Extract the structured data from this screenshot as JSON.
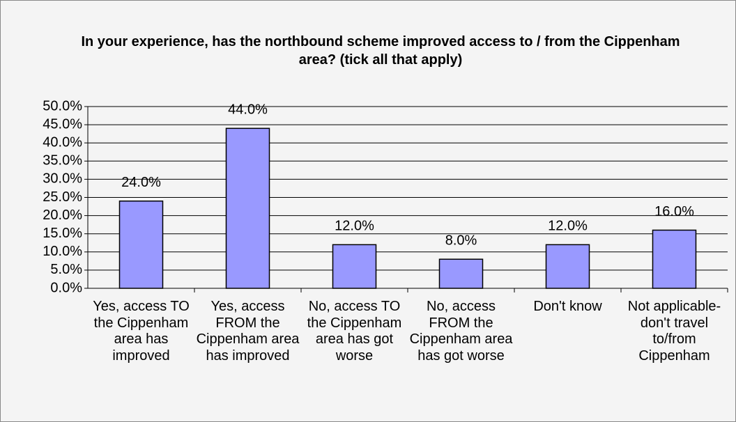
{
  "chart_data": {
    "type": "bar",
    "title": "In your experience, has the northbound scheme improved access to / from the Cippenham area? (tick all that apply)",
    "categories": [
      "Yes, access TO the Cippenham area has improved",
      "Yes, access FROM the Cippenham area has improved",
      "No, access TO the Cippenham area has got worse",
      "No, access FROM the Cippenham area has got worse",
      "Don't know",
      "Not applicable- don't travel to/from Cippenham"
    ],
    "values": [
      24,
      44,
      12,
      8,
      12,
      16
    ],
    "value_labels": [
      "24.0%",
      "44.0%",
      "12.0%",
      "8.0%",
      "12.0%",
      "16.0%"
    ],
    "color": "#9999ff",
    "ylim": [
      0,
      50
    ],
    "yticks": [
      {
        "value": 0,
        "label": "0.0%"
      },
      {
        "value": 5,
        "label": "5.0%"
      },
      {
        "value": 10,
        "label": "10.0%"
      },
      {
        "value": 15,
        "label": "15.0%"
      },
      {
        "value": 20,
        "label": "20.0%"
      },
      {
        "value": 25,
        "label": "25.0%"
      },
      {
        "value": 30,
        "label": "30.0%"
      },
      {
        "value": 35,
        "label": "35.0%"
      },
      {
        "value": 40,
        "label": "40.0%"
      },
      {
        "value": 45,
        "label": "45.0%"
      },
      {
        "value": 50,
        "label": "50.0%"
      }
    ],
    "grid": true
  }
}
